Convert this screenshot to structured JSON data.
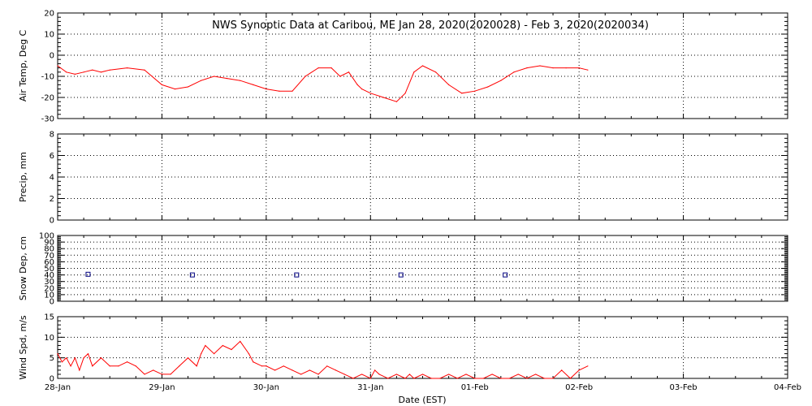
{
  "title": "NWS Synoptic Data at Caribou, ME   Jan 28, 2020(2020028) - Feb  3, 2020(2020034)",
  "xlabel": "Date (EST)",
  "colors": {
    "air_temp": "#ff0000",
    "wind_spd": "#ff0000",
    "snow_dep": "#000080"
  },
  "chart_data": [
    {
      "type": "line",
      "ylabel": "Air Temp, Deg C",
      "ylim": [
        -30,
        20
      ],
      "yticks": [
        20,
        10,
        0,
        -10,
        -20,
        -30
      ],
      "xlim": [
        "2020-01-28",
        "2020-02-04"
      ],
      "grid": true,
      "series": [
        {
          "x": [
            "2020-01-28 00:00",
            "2020-01-28 02:00",
            "2020-01-28 04:00",
            "2020-01-28 06:00",
            "2020-01-28 08:00",
            "2020-01-28 10:00",
            "2020-01-28 12:00",
            "2020-01-28 16:00",
            "2020-01-28 20:00",
            "2020-01-29 00:00",
            "2020-01-29 03:00",
            "2020-01-29 06:00",
            "2020-01-29 09:00",
            "2020-01-29 12:00",
            "2020-01-29 15:00",
            "2020-01-29 18:00",
            "2020-01-29 21:00",
            "2020-01-30 00:00",
            "2020-01-30 03:00",
            "2020-01-30 06:00",
            "2020-01-30 09:00",
            "2020-01-30 12:00",
            "2020-01-30 15:00",
            "2020-01-30 17:00",
            "2020-01-30 19:00",
            "2020-01-30 21:00",
            "2020-01-30 22:00",
            "2020-01-31 00:00",
            "2020-01-31 03:00",
            "2020-01-31 06:00",
            "2020-01-31 08:00",
            "2020-01-31 10:00",
            "2020-01-31 12:00",
            "2020-01-31 15:00",
            "2020-01-31 18:00",
            "2020-01-31 21:00",
            "2020-02-01 00:00",
            "2020-02-01 03:00",
            "2020-02-01 06:00",
            "2020-02-01 09:00",
            "2020-02-01 12:00",
            "2020-02-01 15:00",
            "2020-02-01 18:00",
            "2020-02-01 21:00",
            "2020-02-02 00:00",
            "2020-02-02 02:00"
          ],
          "y": [
            -5,
            -8,
            -9,
            -8,
            -7,
            -8,
            -7,
            -6,
            -7,
            -14,
            -16,
            -15,
            -12,
            -10,
            -11,
            -12,
            -14,
            -16,
            -17,
            -17,
            -10,
            -6,
            -6,
            -10,
            -8,
            -14,
            -16,
            -18,
            -20,
            -22,
            -18,
            -8,
            -5,
            -8,
            -14,
            -18,
            -17,
            -15,
            -12,
            -8,
            -6,
            -5,
            -6,
            -6,
            -6,
            -7
          ]
        }
      ]
    },
    {
      "type": "line",
      "ylabel": "Precip, mm",
      "ylim": [
        0,
        8
      ],
      "yticks": [
        0,
        2,
        4,
        6,
        8
      ],
      "xlim": [
        "2020-01-28",
        "2020-02-04"
      ],
      "grid": true,
      "series": []
    },
    {
      "type": "scatter",
      "ylabel": "Snow Dep, cm",
      "ylim": [
        0,
        100
      ],
      "yticks": [
        0,
        10,
        20,
        30,
        40,
        50,
        60,
        70,
        80,
        90,
        100
      ],
      "xlim": [
        "2020-01-28",
        "2020-02-04"
      ],
      "grid": true,
      "series": [
        {
          "x": [
            "2020-01-28 07:00",
            "2020-01-29 07:00",
            "2020-01-30 07:00",
            "2020-01-31 07:00",
            "2020-02-01 07:00"
          ],
          "y": [
            41,
            40,
            40,
            40,
            40
          ]
        }
      ]
    },
    {
      "type": "line",
      "ylabel": "Wind Spd, m/s",
      "ylim": [
        0,
        15
      ],
      "yticks": [
        0,
        5,
        10,
        15
      ],
      "xlim": [
        "2020-01-28",
        "2020-02-04"
      ],
      "xticks": [
        "28-Jan",
        "29-Jan",
        "30-Jan",
        "31-Jan",
        "01-Feb",
        "02-Feb",
        "03-Feb",
        "04-Feb"
      ],
      "grid": true,
      "series": [
        {
          "x": [
            "2020-01-28 00:00",
            "2020-01-28 01:00",
            "2020-01-28 02:00",
            "2020-01-28 03:00",
            "2020-01-28 04:00",
            "2020-01-28 05:00",
            "2020-01-28 06:00",
            "2020-01-28 07:00",
            "2020-01-28 08:00",
            "2020-01-28 10:00",
            "2020-01-28 12:00",
            "2020-01-28 14:00",
            "2020-01-28 16:00",
            "2020-01-28 18:00",
            "2020-01-28 20:00",
            "2020-01-28 22:00",
            "2020-01-29 00:00",
            "2020-01-29 02:00",
            "2020-01-29 04:00",
            "2020-01-29 06:00",
            "2020-01-29 08:00",
            "2020-01-29 09:00",
            "2020-01-29 10:00",
            "2020-01-29 12:00",
            "2020-01-29 14:00",
            "2020-01-29 16:00",
            "2020-01-29 18:00",
            "2020-01-29 20:00",
            "2020-01-29 21:00",
            "2020-01-29 23:00",
            "2020-01-30 00:00",
            "2020-01-30 02:00",
            "2020-01-30 04:00",
            "2020-01-30 06:00",
            "2020-01-30 08:00",
            "2020-01-30 10:00",
            "2020-01-30 12:00",
            "2020-01-30 14:00",
            "2020-01-30 16:00",
            "2020-01-30 18:00",
            "2020-01-30 20:00",
            "2020-01-30 22:00",
            "2020-01-31 00:00",
            "2020-01-31 01:00",
            "2020-01-31 02:00",
            "2020-01-31 04:00",
            "2020-01-31 06:00",
            "2020-01-31 08:00",
            "2020-01-31 09:00",
            "2020-01-31 10:00",
            "2020-01-31 12:00",
            "2020-01-31 14:00",
            "2020-01-31 16:00",
            "2020-01-31 18:00",
            "2020-01-31 20:00",
            "2020-01-31 22:00",
            "2020-02-01 00:00",
            "2020-02-01 02:00",
            "2020-02-01 04:00",
            "2020-02-01 06:00",
            "2020-02-01 08:00",
            "2020-02-01 10:00",
            "2020-02-01 12:00",
            "2020-02-01 14:00",
            "2020-02-01 16:00",
            "2020-02-01 18:00",
            "2020-02-01 20:00",
            "2020-02-01 22:00",
            "2020-02-02 00:00",
            "2020-02-02 02:00"
          ],
          "y": [
            6,
            4,
            5,
            3,
            5,
            2,
            5,
            6,
            3,
            5,
            3,
            3,
            4,
            3,
            1,
            2,
            1,
            1,
            3,
            5,
            3,
            6,
            8,
            6,
            8,
            7,
            9,
            6,
            4,
            3,
            3,
            2,
            3,
            2,
            1,
            2,
            1,
            3,
            2,
            1,
            0,
            1,
            0,
            2,
            1,
            0,
            1,
            0,
            1,
            0,
            1,
            0,
            0,
            1,
            0,
            1,
            0,
            0,
            1,
            0,
            0,
            1,
            0,
            1,
            0,
            0,
            2,
            0,
            2,
            3
          ]
        }
      ]
    }
  ]
}
